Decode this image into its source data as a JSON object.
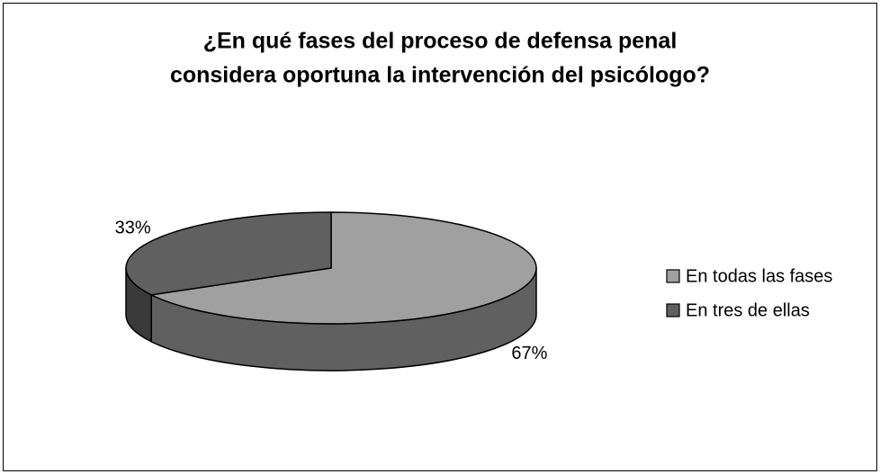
{
  "chart_data": {
    "type": "pie",
    "title": [
      "¿En qué fases del proceso de defensa penal",
      "considera oportuna la intervención del psicólogo?"
    ],
    "categories": [
      "En todas las fases",
      "En tres de ellas"
    ],
    "values": [
      67,
      33
    ],
    "value_labels": [
      "67%",
      "33%"
    ],
    "colors": [
      "#a0a0a0",
      "#606060"
    ],
    "legend": "right"
  }
}
